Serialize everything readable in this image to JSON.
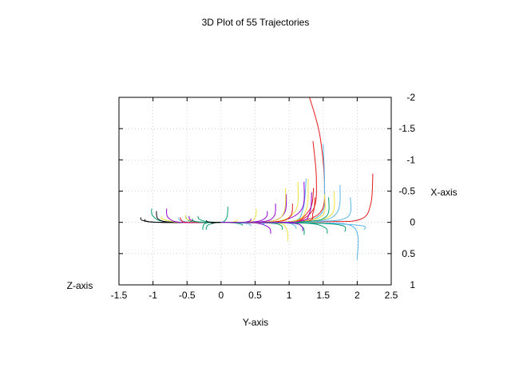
{
  "chart_data": {
    "type": "line",
    "title": "3D Plot of 55 Trajectories",
    "xlabel": "Y-axis",
    "ylabel": "X-axis",
    "zlabel": "Z-axis",
    "xlim": [
      -1.5,
      2.5
    ],
    "ylim": [
      1,
      -2
    ],
    "y_reversed": true,
    "x_ticks": [
      "-1.5",
      "-1",
      "-0.5",
      "0",
      "0.5",
      "1",
      "1.5",
      "2",
      "2.5"
    ],
    "y_ticks": [
      "-2",
      "-1.5",
      "-1",
      "-0.5",
      "0",
      "0.5",
      "1"
    ],
    "grid": true,
    "legend": "none",
    "series": [
      {
        "color": "#e41a1c",
        "x": [
          0,
          1.0,
          1.45,
          1.52,
          1.45,
          1.3
        ],
        "y": [
          0,
          -0.01,
          -0.15,
          -0.6,
          -1.4,
          -2.0
        ]
      },
      {
        "color": "#e41a1c",
        "x": [
          0,
          1.0,
          1.35,
          1.4,
          1.35
        ],
        "y": [
          0,
          -0.01,
          -0.2,
          -0.7,
          -1.3
        ]
      },
      {
        "color": "#e41a1c",
        "x": [
          0,
          1.5,
          2.05,
          2.2,
          2.23
        ],
        "y": [
          0,
          -0.01,
          -0.05,
          -0.3,
          -0.78
        ]
      },
      {
        "color": "#e41a1c",
        "x": [
          0,
          1.0,
          1.3,
          1.36
        ],
        "y": [
          0,
          -0.01,
          -0.2,
          -0.55
        ]
      },
      {
        "color": "#56b4e9",
        "x": [
          0,
          1.1,
          1.48,
          1.52,
          1.5
        ],
        "y": [
          0,
          -0.01,
          -0.15,
          -0.6,
          -1.25
        ]
      },
      {
        "color": "#56b4e9",
        "x": [
          0,
          1.3,
          1.7,
          1.75
        ],
        "y": [
          0,
          -0.01,
          -0.15,
          -0.6
        ]
      },
      {
        "color": "#56b4e9",
        "x": [
          0,
          1.3,
          1.85,
          1.9
        ],
        "y": [
          0,
          -0.01,
          -0.08,
          -0.4
        ]
      },
      {
        "color": "#56b4e9",
        "x": [
          0,
          1.3,
          1.95,
          2.0
        ],
        "y": [
          0,
          0.01,
          0.08,
          0.6
        ]
      },
      {
        "color": "#56b4e9",
        "x": [
          0,
          1.3,
          2.05,
          2.1
        ],
        "y": [
          0,
          0.01,
          0.05,
          0.12
        ]
      },
      {
        "color": "#56b4e9",
        "x": [
          0,
          1.0,
          1.2,
          1.25
        ],
        "y": [
          0,
          -0.01,
          -0.2,
          -0.7
        ]
      },
      {
        "color": "#9400d3",
        "x": [
          0,
          0.8,
          1.18,
          1.22
        ],
        "y": [
          0,
          -0.01,
          -0.2,
          -0.65
        ]
      },
      {
        "color": "#9400d3",
        "x": [
          0,
          0.7,
          0.93,
          0.96
        ],
        "y": [
          0,
          -0.01,
          -0.15,
          -0.45
        ]
      },
      {
        "color": "#9400d3",
        "x": [
          0,
          0.6,
          0.78,
          0.8
        ],
        "y": [
          0,
          -0.01,
          -0.1,
          -0.3
        ]
      },
      {
        "color": "#9400d3",
        "x": [
          0,
          0.5,
          0.66,
          0.68
        ],
        "y": [
          0,
          -0.01,
          -0.08,
          -0.18
        ]
      },
      {
        "color": "#9400d3",
        "x": [
          0,
          0.5,
          0.7,
          0.73
        ],
        "y": [
          0,
          0.01,
          0.08,
          0.18
        ]
      },
      {
        "color": "#f0e442",
        "x": [
          0,
          0.7,
          0.92,
          0.95
        ],
        "y": [
          0,
          -0.01,
          -0.15,
          -0.55
        ]
      },
      {
        "color": "#f0e442",
        "x": [
          0,
          0.8,
          1.1,
          1.13
        ],
        "y": [
          0,
          -0.01,
          -0.2,
          -0.65
        ]
      },
      {
        "color": "#f0e442",
        "x": [
          0,
          1.0,
          1.25,
          1.28
        ],
        "y": [
          0,
          -0.01,
          -0.2,
          -0.7
        ]
      },
      {
        "color": "#f0e442",
        "x": [
          0,
          1.0,
          1.48,
          1.52
        ],
        "y": [
          0,
          -0.01,
          -0.1,
          -0.45
        ]
      },
      {
        "color": "#f0e442",
        "x": [
          0,
          0.8,
          0.96,
          0.98
        ],
        "y": [
          0,
          0.01,
          0.1,
          0.3
        ]
      },
      {
        "color": "#f0e442",
        "x": [
          0,
          0.4,
          0.5,
          0.52
        ],
        "y": [
          0,
          -0.01,
          -0.08,
          -0.22
        ]
      },
      {
        "color": "#009e73",
        "x": [
          0,
          1.2,
          1.52,
          1.56
        ],
        "y": [
          0,
          0.01,
          0.08,
          0.18
        ]
      },
      {
        "color": "#009e73",
        "x": [
          0,
          1.0,
          1.2,
          1.22
        ],
        "y": [
          0,
          0.01,
          0.08,
          0.2
        ]
      },
      {
        "color": "#009e73",
        "x": [
          0,
          0.7,
          0.88,
          0.9
        ],
        "y": [
          0,
          0.01,
          0.05,
          0.12
        ]
      },
      {
        "color": "#009e73",
        "x": [
          0,
          1.3,
          1.78,
          1.82
        ],
        "y": [
          0,
          0.01,
          0.05,
          0.15
        ]
      },
      {
        "color": "#009e73",
        "x": [
          0,
          0.05,
          0.09,
          0.1
        ],
        "y": [
          0,
          -0.02,
          -0.1,
          -0.25
        ]
      },
      {
        "color": "#009e73",
        "x": [
          0,
          -0.1,
          -0.2,
          -0.22
        ],
        "y": [
          0,
          0.01,
          0.05,
          0.12
        ]
      },
      {
        "color": "#009e73",
        "x": [
          0,
          -0.8,
          -1.0,
          -1.02
        ],
        "y": [
          0,
          -0.01,
          -0.1,
          -0.22
        ]
      },
      {
        "color": "#009e73",
        "x": [
          0,
          -0.4,
          -0.5,
          -0.52
        ],
        "y": [
          0,
          -0.01,
          -0.05,
          -0.1
        ]
      },
      {
        "color": "#009e73",
        "x": [
          0,
          -0.2,
          -0.32,
          -0.34
        ],
        "y": [
          0,
          -0.01,
          -0.05,
          -0.1
        ]
      },
      {
        "color": "#009e73",
        "x": [
          0,
          0.2,
          0.3,
          0.32
        ],
        "y": [
          0,
          0.01,
          0.03,
          0.05
        ]
      },
      {
        "color": "#000000",
        "x": [
          0,
          -0.9,
          -1.15,
          -1.18
        ],
        "y": [
          0,
          0.0,
          -0.03,
          -0.08
        ]
      },
      {
        "color": "#000000",
        "x": [
          0,
          -0.9,
          -1.1,
          -1.12
        ],
        "y": [
          0,
          0.0,
          -0.02,
          -0.05
        ]
      },
      {
        "color": "#000000",
        "x": [
          0,
          -0.7,
          -0.92,
          -0.95
        ],
        "y": [
          0,
          0.0,
          -0.05,
          -0.18
        ]
      },
      {
        "color": "#f0e442",
        "x": [
          0,
          -0.6,
          -0.85,
          -0.88
        ],
        "y": [
          0,
          0.0,
          -0.05,
          -0.1
        ]
      },
      {
        "color": "#f0e442",
        "x": [
          0,
          -0.3,
          -0.5,
          -0.52
        ],
        "y": [
          0,
          0.0,
          -0.05,
          -0.12
        ]
      },
      {
        "color": "#9400d3",
        "x": [
          0,
          -0.6,
          -0.78,
          -0.8
        ],
        "y": [
          0,
          0.0,
          -0.08,
          -0.22
        ]
      },
      {
        "color": "#9400d3",
        "x": [
          0,
          -0.3,
          -0.45,
          -0.47
        ],
        "y": [
          0,
          0.0,
          -0.04,
          -0.1
        ]
      },
      {
        "color": "#56b4e9",
        "x": [
          0,
          -0.4,
          -0.6,
          -0.62
        ],
        "y": [
          0,
          0.0,
          -0.03,
          -0.08
        ]
      },
      {
        "color": "#56b4e9",
        "x": [
          0,
          0.3,
          0.42,
          0.44
        ],
        "y": [
          0,
          0.01,
          0.03,
          0.06
        ]
      },
      {
        "color": "#e41a1c",
        "x": [
          0,
          -0.5,
          -0.58,
          -0.6
        ],
        "y": [
          0,
          0.0,
          -0.03,
          -0.08
        ]
      },
      {
        "color": "#009e73",
        "x": [
          0,
          -0.15,
          -0.25,
          -0.27
        ],
        "y": [
          0,
          0.0,
          0.03,
          0.12
        ]
      },
      {
        "color": "#009e73",
        "x": [
          0,
          -0.25,
          -0.4,
          -0.42
        ],
        "y": [
          0,
          0.0,
          -0.02,
          -0.06
        ]
      },
      {
        "color": "#000000",
        "x": [
          0,
          -0.15,
          -0.2,
          -0.22
        ],
        "y": [
          0,
          0.0,
          -0.01,
          -0.03
        ]
      },
      {
        "color": "#f0e442",
        "x": [
          0,
          0.15,
          0.22,
          0.24
        ],
        "y": [
          0,
          0.0,
          -0.02,
          -0.05
        ]
      },
      {
        "color": "#9400d3",
        "x": [
          0,
          0.3,
          0.42,
          0.44
        ],
        "y": [
          0,
          0.0,
          -0.02,
          -0.06
        ]
      },
      {
        "color": "#56b4e9",
        "x": [
          0,
          0.5,
          0.62,
          0.64
        ],
        "y": [
          0,
          0.0,
          0.02,
          0.06
        ]
      },
      {
        "color": "#e41a1c",
        "x": [
          0,
          0.8,
          1.02,
          1.05
        ],
        "y": [
          0,
          -0.01,
          -0.1,
          -0.3
        ]
      },
      {
        "color": "#9400d3",
        "x": [
          0,
          1.0,
          1.18,
          1.2
        ],
        "y": [
          0,
          0.01,
          0.06,
          0.14
        ]
      },
      {
        "color": "#56b4e9",
        "x": [
          0,
          0.9,
          1.08,
          1.1
        ],
        "y": [
          0,
          0.01,
          0.05,
          0.1
        ]
      },
      {
        "color": "#000000",
        "x": [
          0,
          -0.05,
          -0.12,
          -0.14
        ],
        "y": [
          0,
          0.0,
          0.01,
          0.02
        ]
      },
      {
        "color": "#e41a1c",
        "x": [
          0,
          1.2,
          1.35,
          1.38
        ],
        "y": [
          0,
          -0.01,
          -0.15,
          -0.4
        ]
      },
      {
        "color": "#f0e442",
        "x": [
          0,
          1.2,
          1.62,
          1.66
        ],
        "y": [
          0,
          -0.01,
          -0.12,
          -0.5
        ]
      },
      {
        "color": "#009e73",
        "x": [
          0,
          1.2,
          1.55,
          1.58
        ],
        "y": [
          0,
          -0.01,
          -0.1,
          -0.4
        ]
      },
      {
        "color": "#9400d3",
        "x": [
          0,
          1.1,
          1.3,
          1.33
        ],
        "y": [
          0,
          -0.01,
          -0.15,
          -0.48
        ]
      }
    ]
  }
}
